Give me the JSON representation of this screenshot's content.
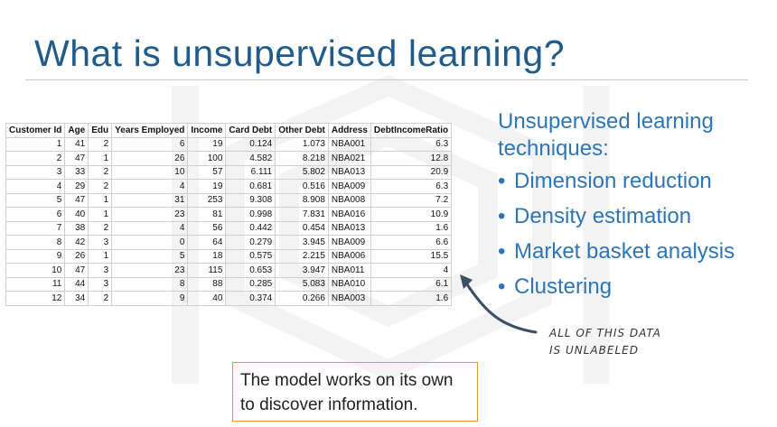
{
  "slide": {
    "title": "What is unsupervised learning?"
  },
  "table": {
    "columns": [
      "Customer Id",
      "Age",
      "Edu",
      "Years Employed",
      "Income",
      "Card Debt",
      "Other Debt",
      "Address",
      "DebtIncomeRatio"
    ],
    "rows": [
      [
        "1",
        "41",
        "2",
        "6",
        "19",
        "0.124",
        "1.073",
        "NBA001",
        "6.3"
      ],
      [
        "2",
        "47",
        "1",
        "26",
        "100",
        "4.582",
        "8.218",
        "NBA021",
        "12.8"
      ],
      [
        "3",
        "33",
        "2",
        "10",
        "57",
        "6.111",
        "5.802",
        "NBA013",
        "20.9"
      ],
      [
        "4",
        "29",
        "2",
        "4",
        "19",
        "0.681",
        "0.516",
        "NBA009",
        "6.3"
      ],
      [
        "5",
        "47",
        "1",
        "31",
        "253",
        "9.308",
        "8.908",
        "NBA008",
        "7.2"
      ],
      [
        "6",
        "40",
        "1",
        "23",
        "81",
        "0.998",
        "7.831",
        "NBA016",
        "10.9"
      ],
      [
        "7",
        "38",
        "2",
        "4",
        "56",
        "0.442",
        "0.454",
        "NBA013",
        "1.6"
      ],
      [
        "8",
        "42",
        "3",
        "0",
        "64",
        "0.279",
        "3.945",
        "NBA009",
        "6.6"
      ],
      [
        "9",
        "26",
        "1",
        "5",
        "18",
        "0.575",
        "2.215",
        "NBA006",
        "15.5"
      ],
      [
        "10",
        "47",
        "3",
        "23",
        "115",
        "0.653",
        "3.947",
        "NBA011",
        "4"
      ],
      [
        "11",
        "44",
        "3",
        "8",
        "88",
        "0.285",
        "5.083",
        "NBA010",
        "6.1"
      ],
      [
        "12",
        "34",
        "2",
        "9",
        "40",
        "0.374",
        "0.266",
        "NBA003",
        "1.6"
      ]
    ]
  },
  "techniques": {
    "heading": "Unsupervised learning techniques:",
    "items": [
      "Dimension reduction",
      "Density estimation",
      "Market basket analysis",
      "Clustering"
    ],
    "bullet": "•"
  },
  "annotation": {
    "line1": "ALL OF THIS DATA",
    "line2": "IS UNLABELED"
  },
  "note": {
    "text": "The model works on its own to discover information."
  },
  "colors": {
    "title": "#1f5c8c",
    "techniques": "#2e75b6",
    "note_border": "#e69638"
  }
}
